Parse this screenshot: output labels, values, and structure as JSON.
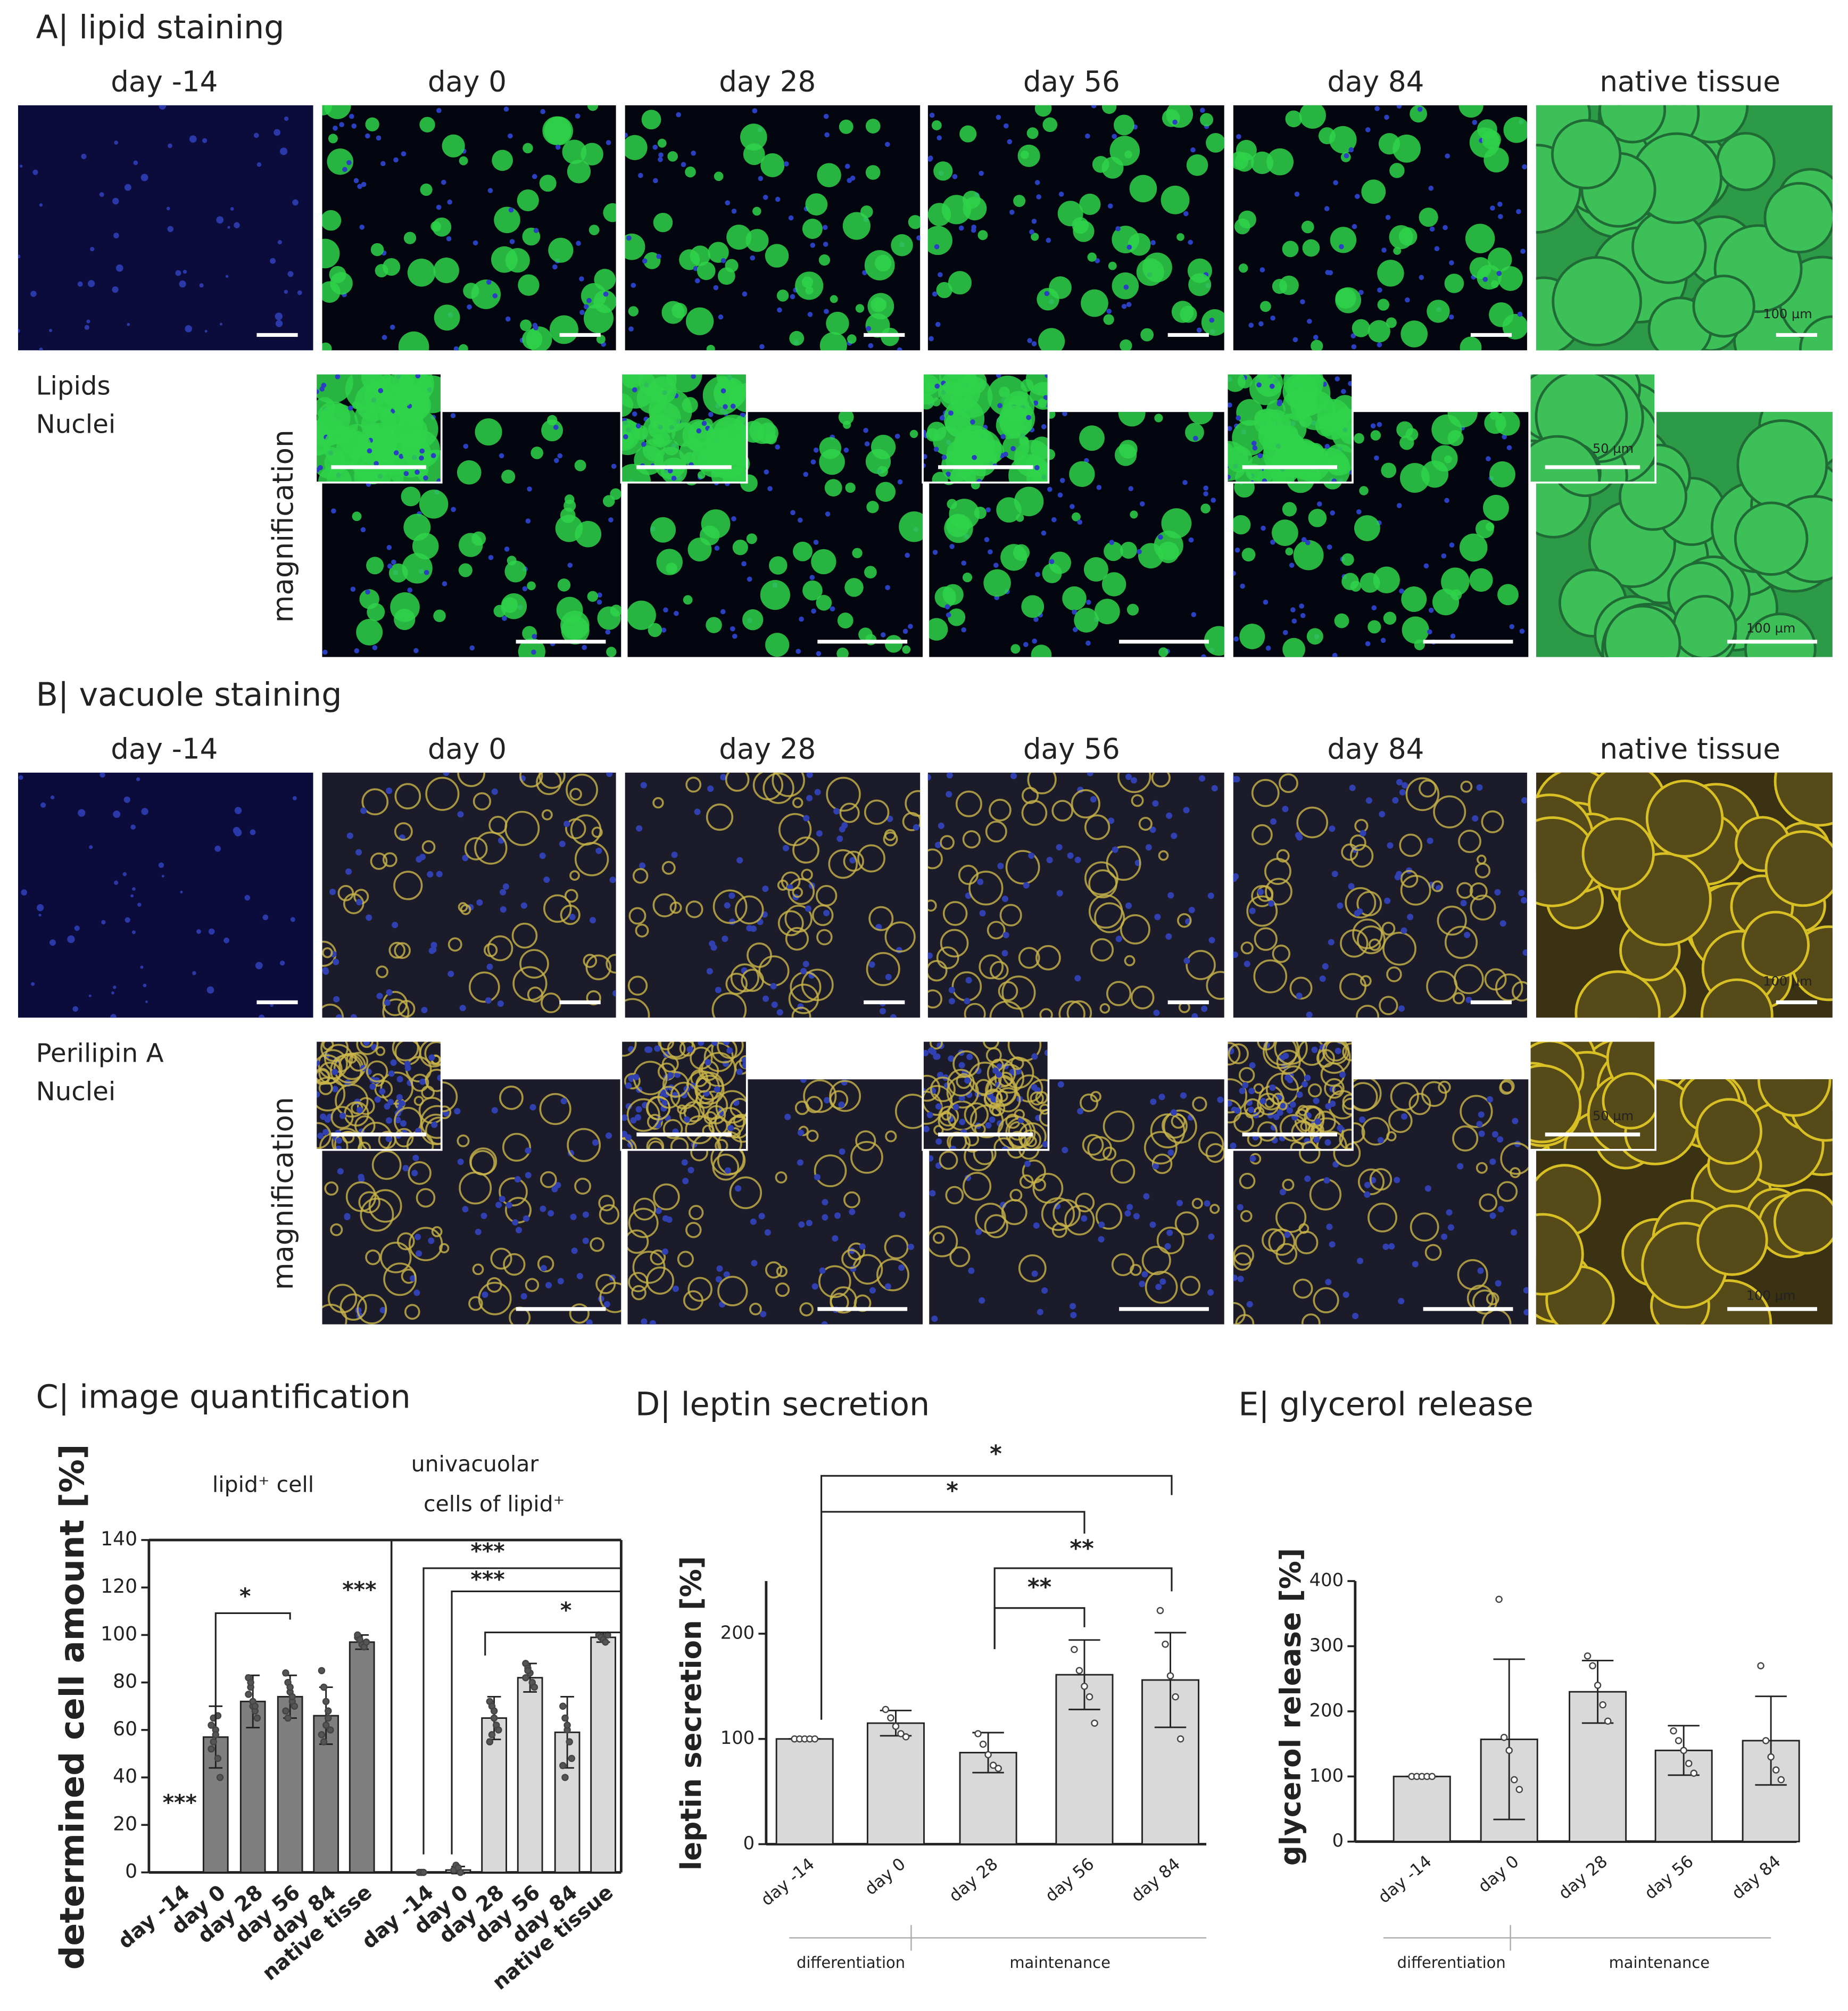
{
  "panels": {
    "A": {
      "title": "A| lipid staining",
      "columns": [
        "day -14",
        "day 0",
        "day 28",
        "day 56",
        "day 84",
        "native tissue"
      ],
      "legend": [
        "Lipids",
        "Nuclei"
      ],
      "magnification": "magnification",
      "scale_bar": "100 µm",
      "inset_scale_bar": "50 µm"
    },
    "B": {
      "title": "B| vacuole staining",
      "columns": [
        "day -14",
        "day 0",
        "day 28",
        "day 56",
        "day 84",
        "native tissue"
      ],
      "legend": [
        "Perilipin A",
        "Nuclei"
      ],
      "magnification": "magnification",
      "scale_bar": "100 µm",
      "inset_scale_bar": "50 µm"
    }
  },
  "chart_data": [
    {
      "type": "bar",
      "title": "C| image quantification",
      "ylabel": "determined cell amount [%]",
      "ylim": [
        0,
        140
      ],
      "yticks": [
        0,
        20,
        40,
        60,
        80,
        100,
        120,
        140
      ],
      "groups": [
        {
          "label": [
            "lipid⁺ cell"
          ],
          "color": "#7f7f7f",
          "categories": [
            "day -14",
            "day 0",
            "day 28",
            "day 56",
            "day 84",
            "native tisse"
          ],
          "values": [
            0,
            57,
            72,
            74,
            66,
            97
          ],
          "errors": [
            0,
            13,
            11,
            9,
            12,
            3
          ],
          "points": [
            [],
            [
              52,
              65,
              60,
              48,
              40,
              62,
              55,
              58,
              66
            ],
            [
              82,
              78,
              70,
              68,
              65,
              75,
              80,
              72,
              70
            ],
            [
              84,
              80,
              76,
              72,
              70,
              68,
              65,
              78,
              74
            ],
            [
              85,
              78,
              72,
              65,
              60,
              58,
              55,
              62,
              68
            ],
            [
              99,
              98,
              96,
              95,
              97,
              100,
              98
            ]
          ]
        },
        {
          "label": [
            "univacuolar",
            "cells of lipid⁺"
          ],
          "color": "#d9d9d9",
          "categories": [
            "day -14",
            "day 0",
            "day 28",
            "day 56",
            "day 84",
            "native tissue"
          ],
          "values": [
            0,
            1,
            65,
            82,
            59,
            99
          ],
          "errors": [
            0,
            1.5,
            9,
            6,
            15,
            2
          ],
          "points": [
            [
              0,
              0,
              0
            ],
            [
              1,
              3,
              2,
              0
            ],
            [
              72,
              70,
              68,
              62,
              60,
              55,
              58,
              65
            ],
            [
              88,
              86,
              84,
              80,
              78,
              82,
              85
            ],
            [
              70,
              65,
              60,
              55,
              48,
              45,
              40,
              62
            ],
            [
              100,
              99,
              98,
              97,
              100
            ]
          ]
        }
      ],
      "significance": [
        "***",
        "*",
        "***",
        "***",
        "***",
        "*"
      ]
    },
    {
      "type": "bar",
      "title": "D| leptin secretion",
      "ylabel": "leptin secretion [%]",
      "ylim": [
        0,
        250
      ],
      "yticks": [
        0,
        100,
        200
      ],
      "color": "#d9d9d9",
      "categories": [
        "day -14",
        "day 0",
        "day 28",
        "day 56",
        "day 84"
      ],
      "values": [
        100,
        115,
        87,
        161,
        156
      ],
      "errors": [
        0,
        12,
        19,
        33,
        45
      ],
      "points": [
        [
          100,
          100,
          100,
          100,
          100
        ],
        [
          128,
          120,
          112,
          105,
          102
        ],
        [
          105,
          95,
          85,
          75,
          72
        ],
        [
          185,
          165,
          150,
          140,
          115
        ],
        [
          222,
          190,
          160,
          140,
          100
        ]
      ],
      "significance": [
        "*",
        "*",
        "**",
        "**"
      ],
      "phases": [
        "differentiation",
        "maintenance"
      ]
    },
    {
      "type": "bar",
      "title": "E| glycerol release",
      "ylabel": "glycerol release [%]",
      "ylim": [
        0,
        400
      ],
      "yticks": [
        0,
        100,
        200,
        300,
        400
      ],
      "color": "#d9d9d9",
      "categories": [
        "day -14",
        "day 0",
        "day 28",
        "day 56",
        "day 84"
      ],
      "values": [
        100,
        157,
        230,
        140,
        155
      ],
      "errors": [
        0,
        123,
        48,
        38,
        68
      ],
      "points": [
        [
          100,
          100,
          100,
          100,
          100
        ],
        [
          372,
          160,
          140,
          95,
          80
        ],
        [
          285,
          270,
          240,
          210,
          185
        ],
        [
          170,
          155,
          140,
          120,
          105
        ],
        [
          270,
          155,
          130,
          110,
          95
        ]
      ],
      "phases": [
        "differentiation",
        "maintenance"
      ]
    }
  ]
}
